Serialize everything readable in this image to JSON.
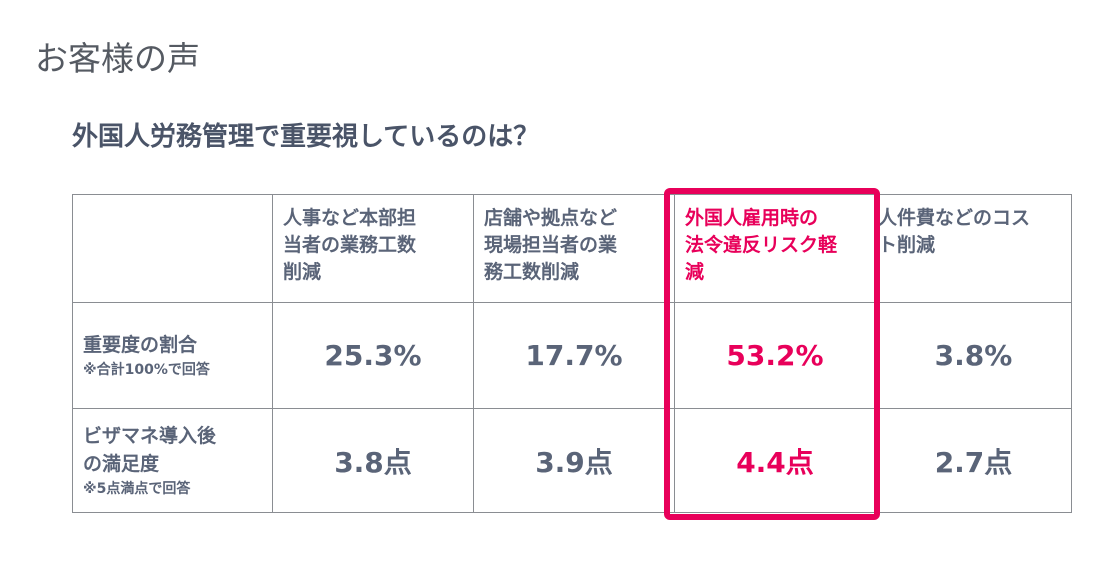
{
  "header": {
    "title": "お客様の声"
  },
  "question": "外国人労務管理で重要視しているのは？",
  "table": {
    "columns": [
      [
        "人事など本部担",
        "当者の業務工数",
        "削減"
      ],
      [
        "店舗や拠点など",
        "現場担当者の業",
        "務工数削減"
      ],
      [
        "外国人雇用時の",
        "法令違反リスク軽",
        "減"
      ],
      [
        "人件費などのコス",
        "ト削減"
      ]
    ],
    "rows": [
      {
        "label": [
          "重要度の割合"
        ],
        "note": "※合計100%で回答",
        "cells": [
          "25.3%",
          "17.7%",
          "53.2%",
          "3.8%"
        ]
      },
      {
        "label": [
          "ビザマネ導入後",
          "の満足度"
        ],
        "note": "※5点満点で回答",
        "cells": [
          "3.8点",
          "3.9点",
          "4.4点",
          "2.7点"
        ]
      }
    ]
  }
}
